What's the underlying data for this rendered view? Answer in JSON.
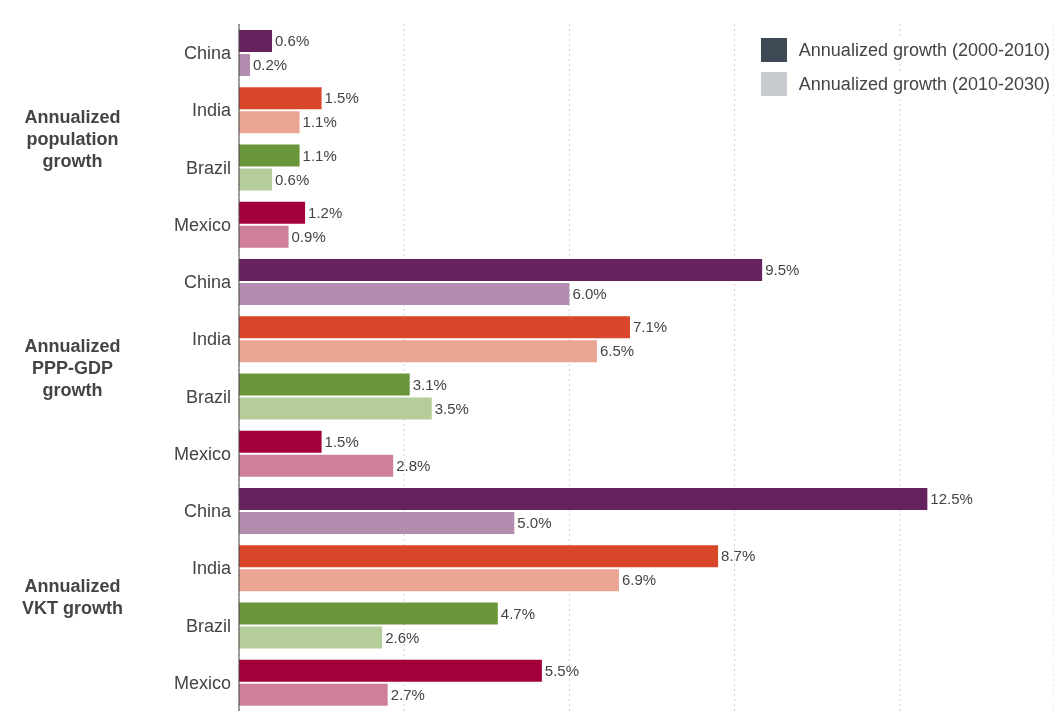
{
  "chart_data": {
    "type": "bar",
    "orientation": "horizontal",
    "categories": [
      "China",
      "India",
      "Brazil",
      "Mexico",
      "China",
      "India",
      "Brazil",
      "Mexico",
      "China",
      "India",
      "Brazil",
      "Mexico"
    ],
    "series": [
      {
        "name": "Annualized growth (2000-2010)",
        "color": "#3d4a55",
        "colors": [
          "#66215f",
          "#d9472a",
          "#6a963a",
          "#a3003c",
          "#66215f",
          "#d9472a",
          "#6a963a",
          "#a3003c",
          "#66215f",
          "#d9472a",
          "#6a963a",
          "#a3003c"
        ],
        "values": [
          0.6,
          1.5,
          1.1,
          1.2,
          9.5,
          7.1,
          3.1,
          1.5,
          12.5,
          8.7,
          4.7,
          5.5
        ],
        "value_labels": [
          "0.6%",
          "1.5%",
          "1.1%",
          "1.2%",
          "9.5%",
          "7.1%",
          "3.1%",
          "1.5%",
          "12.5%",
          "8.7%",
          "4.7%",
          "5.5%"
        ]
      },
      {
        "name": "Annualized growth (2010-2030)",
        "color": "#c8ccd0",
        "colors": [
          "#b38db0",
          "#eba593",
          "#b5cc9b",
          "#cf7f9c",
          "#b38db0",
          "#eba593",
          "#b5cc9b",
          "#cf7f9c",
          "#b38db0",
          "#eba593",
          "#b5cc9b",
          "#cf7f9c"
        ],
        "values": [
          0.2,
          1.1,
          0.6,
          0.9,
          6.0,
          6.5,
          3.5,
          2.8,
          5.0,
          6.9,
          2.6,
          2.7
        ],
        "value_labels": [
          "0.2%",
          "1.1%",
          "0.6%",
          "0.9%",
          "6.0%",
          "6.5%",
          "3.5%",
          "2.8%",
          "5.0%",
          "6.9%",
          "2.6%",
          "2.7%"
        ]
      }
    ],
    "xlim": [
      0,
      14.8
    ],
    "xticks": [
      {
        "value": 0,
        "label": null
      },
      {
        "value": 3,
        "label": null
      },
      {
        "value": 6,
        "label": null
      },
      {
        "value": 9,
        "label": null
      },
      {
        "value": 12,
        "label": null
      }
    ],
    "tick_labels": "y",
    "grid": "x",
    "legend": "top right",
    "annotations": [
      "Annualized population growth",
      "Annualized PPP-GDP growth",
      "Annualized VKT growth"
    ]
  }
}
